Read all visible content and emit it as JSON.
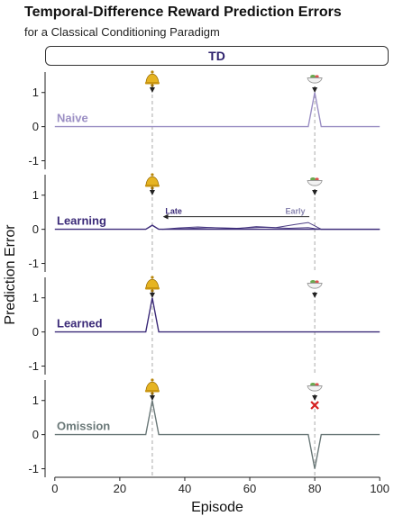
{
  "header": {
    "title": "Temporal-Difference Reward Prediction Errors",
    "subtitle": "for a Classical Conditioning Paradigm",
    "strip_label": "TD"
  },
  "chart_data": {
    "type": "line",
    "xlabel": "Episode",
    "ylabel": "Prediction Error",
    "xlim": [
      -3,
      103
    ],
    "ylim": [
      -1.25,
      1.6
    ],
    "x_ticks": [
      0,
      20,
      40,
      60,
      80,
      100
    ],
    "y_ticks": [
      -1,
      0,
      1
    ],
    "cue_episode": 30,
    "reward_episode": 80,
    "cue_icon": "bell-icon",
    "reward_icon": "food-bowl-icon",
    "omission_marker": "red-x-icon",
    "learning_arrow": {
      "from": 80,
      "to": 33,
      "start_label": "Early",
      "end_label": "Late"
    },
    "panels": [
      {
        "name": "Naive",
        "color": "#9b8fc4",
        "points": [
          [
            0,
            0
          ],
          [
            78,
            0
          ],
          [
            80,
            1
          ],
          [
            82,
            0
          ],
          [
            100,
            0
          ]
        ]
      },
      {
        "name": "Learning",
        "color": "#3b2a78",
        "points": [
          [
            0,
            0
          ],
          [
            28,
            0
          ],
          [
            30,
            0.12
          ],
          [
            32,
            0
          ],
          [
            100,
            0
          ]
        ],
        "waves": [
          {
            "points": [
              [
                33,
                0
              ],
              [
                38,
                0.04
              ],
              [
                44,
                0.07
              ],
              [
                50,
                0.04
              ],
              [
                56,
                0.02
              ],
              [
                62,
                0.08
              ],
              [
                68,
                0.05
              ],
              [
                74,
                0.14
              ],
              [
                78,
                0.2
              ],
              [
                80,
                0.1
              ],
              [
                82,
                0
              ],
              [
                100,
                0
              ]
            ]
          },
          {
            "points": [
              [
                33,
                0
              ],
              [
                40,
                0.02
              ],
              [
                48,
                0.05
              ],
              [
                56,
                0.03
              ],
              [
                64,
                0.06
              ],
              [
                72,
                0.03
              ],
              [
                78,
                0.05
              ],
              [
                80,
                0.02
              ],
              [
                82,
                0
              ],
              [
                100,
                0
              ]
            ]
          }
        ]
      },
      {
        "name": "Learned",
        "color": "#3b2a78",
        "points": [
          [
            0,
            0
          ],
          [
            28,
            0
          ],
          [
            30,
            1
          ],
          [
            32,
            0
          ],
          [
            100,
            0
          ]
        ]
      },
      {
        "name": "Omission",
        "color": "#6a7878",
        "points": [
          [
            0,
            0
          ],
          [
            28,
            0
          ],
          [
            30,
            1
          ],
          [
            32,
            0
          ],
          [
            78,
            0
          ],
          [
            80,
            -1
          ],
          [
            82,
            0
          ],
          [
            100,
            0
          ]
        ]
      }
    ]
  }
}
